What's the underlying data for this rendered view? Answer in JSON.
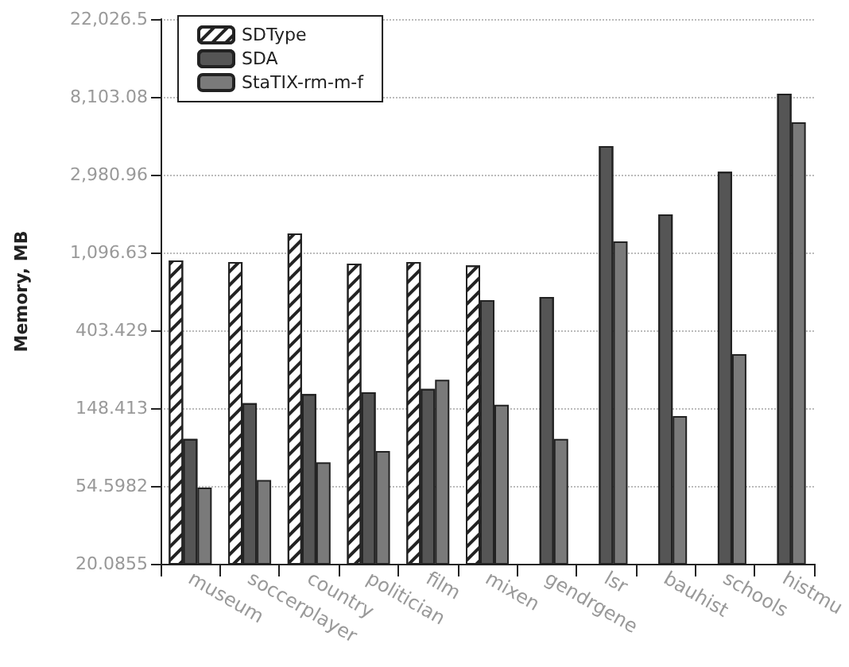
{
  "chart_data": {
    "type": "bar",
    "ylabel": "Memory, MB",
    "categories": [
      "museum",
      "soccerplayer",
      "country",
      "politician",
      "film",
      "mixen",
      "gendrgene",
      "lsr",
      "bauhist",
      "schools",
      "histmu"
    ],
    "series": [
      {
        "name": "SDType",
        "color": "#ffffff",
        "values": [
          990,
          970,
          1400,
          950,
          970,
          930,
          null,
          null,
          null,
          null,
          null
        ]
      },
      {
        "name": "SDA",
        "color": "#555555",
        "values": [
          100,
          158,
          178,
          182,
          190,
          594,
          620,
          4300,
          1790,
          3100,
          8440
        ]
      },
      {
        "name": "StaTIX-rm-m-f",
        "color": "#7a7a7a",
        "values": [
          53.5,
          59,
          74,
          85.5,
          214,
          155,
          100,
          1265,
          134,
          297,
          5850
        ]
      }
    ],
    "log": true,
    "ylim": [
      20.0855,
      22026.5
    ],
    "yticks": [
      20.0855,
      54.5982,
      148.413,
      403.429,
      {
        "value": 1096.63,
        "label": "1,096.63"
      },
      {
        "value": 2980.96,
        "label": "2,980.96"
      },
      {
        "value": 8103.08,
        "label": "8,103.08"
      },
      {
        "value": 22026.5,
        "label": "22,026.5"
      }
    ],
    "grid": "y",
    "legend": "top left"
  }
}
